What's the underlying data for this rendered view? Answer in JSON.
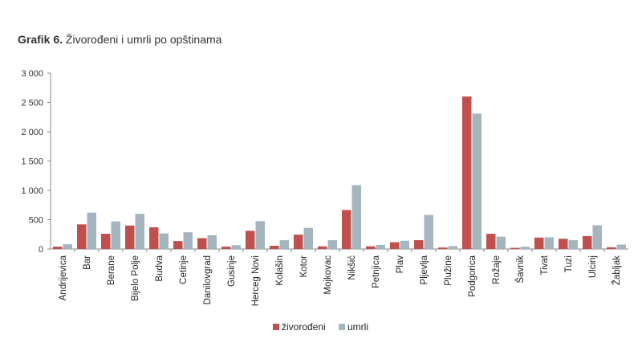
{
  "title": {
    "number": "Grafik 6.",
    "text": "Živorođeni i umrli po opštinama"
  },
  "chart_data": {
    "type": "bar",
    "title": "Grafik 6. Živorođeni i umrli po opštinama",
    "xlabel": "",
    "ylabel": "",
    "ylim": [
      0,
      3000
    ],
    "yticks": [
      0,
      500,
      1000,
      1500,
      2000,
      2500,
      3000
    ],
    "ytick_labels": [
      "0",
      "500",
      "1 000",
      "1 500",
      "2 000",
      "2 500",
      "3 000"
    ],
    "categories": [
      "Andrijevica",
      "Bar",
      "Berane",
      "Bijelo Polje",
      "Budva",
      "Cetinje",
      "Danilovgrad",
      "Gusinje",
      "Herceg Novi",
      "Kolašin",
      "Kotor",
      "Mojkovac",
      "Nikšić",
      "Petnjica",
      "Plav",
      "Pljevlja",
      "Plužine",
      "Podgorica",
      "Rožaje",
      "Šavnik",
      "Tivat",
      "Tuzi",
      "Ulcinj",
      "Žabljak"
    ],
    "series": [
      {
        "name": "živorođeni",
        "color": "#c0504d",
        "values": [
          40,
          420,
          260,
          400,
          370,
          135,
          185,
          40,
          310,
          55,
          245,
          45,
          665,
          45,
          115,
          150,
          25,
          2600,
          260,
          20,
          195,
          175,
          220,
          30
        ]
      },
      {
        "name": "umrli",
        "color": "#a5b5bd",
        "values": [
          80,
          620,
          470,
          600,
          265,
          285,
          235,
          65,
          475,
          150,
          360,
          150,
          1090,
          70,
          140,
          580,
          50,
          2310,
          210,
          40,
          200,
          150,
          405,
          75
        ]
      }
    ],
    "grid": false,
    "legend_position": "bottom-center"
  }
}
